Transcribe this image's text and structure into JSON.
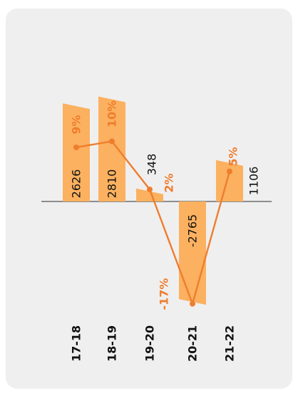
{
  "chart_data": {
    "type": "bar",
    "categories": [
      "17-18",
      "18-19",
      "19-20",
      "20-21",
      "21-22"
    ],
    "series": [
      {
        "values": [
          2626,
          2810,
          348,
          -2765,
          1106
        ],
        "value_labels": [
          "2626",
          "2810",
          "348",
          "-2765",
          "1106"
        ]
      },
      {
        "values": [
          9,
          10,
          2,
          -17,
          5
        ],
        "value_labels": [
          "9%",
          "10%",
          "2%",
          "-17%",
          "5%"
        ]
      }
    ],
    "title": "",
    "xlabel": "",
    "ylabel": "",
    "ylim": [
      -3000,
      3000
    ],
    "grid": false,
    "legend": "none",
    "orientation": "rotated-90-ccw"
  },
  "colors": {
    "bar": "#fbb15f",
    "line": "#ef7d2e",
    "axis": "#555555",
    "text": "#111111",
    "background": "#efefef"
  }
}
